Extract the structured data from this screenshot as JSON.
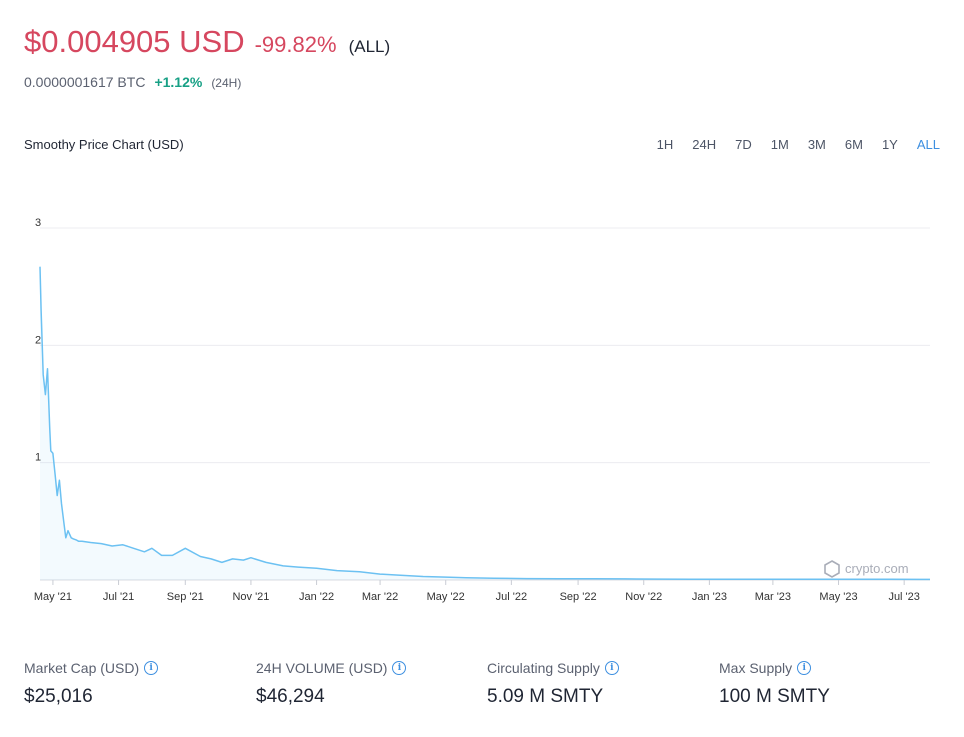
{
  "header": {
    "price": "$0.004905 USD",
    "change": "-99.82%",
    "range": "(ALL)",
    "btc_price": "0.0000001617 BTC",
    "btc_change": "+1.12%",
    "btc_period": "(24H)"
  },
  "chart_section": {
    "title": "Smoothy Price Chart (USD)",
    "tabs": [
      "1H",
      "24H",
      "7D",
      "1M",
      "3M",
      "6M",
      "1Y",
      "ALL"
    ],
    "active_tab": "ALL",
    "watermark": "crypto.com"
  },
  "chart_data": {
    "type": "area",
    "ylim": [
      0,
      3
    ],
    "yticks": [
      "3",
      "2",
      "1"
    ],
    "xticks": [
      "May '21",
      "Jul '21",
      "Sep '21",
      "Nov '21",
      "Jan '22",
      "Mar '22",
      "May '22",
      "Jul '22",
      "Sep '22",
      "Nov '22",
      "Jan '23",
      "Mar '23",
      "May '23",
      "Jul '23"
    ],
    "grid": true,
    "line_color": "#6cc1f2",
    "series": [
      {
        "x": [
          "2021-04-19",
          "2021-04-20",
          "2021-04-22",
          "2021-04-24",
          "2021-04-26",
          "2021-04-28",
          "2021-04-29",
          "2021-05-01",
          "2021-05-03",
          "2021-05-05",
          "2021-05-07",
          "2021-05-09",
          "2021-05-11",
          "2021-05-13",
          "2021-05-15",
          "2021-05-18",
          "2021-05-20",
          "2021-05-23",
          "2021-05-25",
          "2021-05-28",
          "2021-06-05",
          "2021-06-15",
          "2021-06-25",
          "2021-07-05",
          "2021-07-15",
          "2021-07-25",
          "2021-08-01",
          "2021-08-10",
          "2021-08-20",
          "2021-09-01",
          "2021-09-15",
          "2021-09-25",
          "2021-10-05",
          "2021-10-15",
          "2021-10-25",
          "2021-11-01",
          "2021-11-15",
          "2021-12-01",
          "2021-12-15",
          "2022-01-01",
          "2022-01-20",
          "2022-02-10",
          "2022-03-01",
          "2022-03-20",
          "2022-04-10",
          "2022-05-01",
          "2022-05-20",
          "2022-06-15",
          "2022-07-15",
          "2022-08-15",
          "2022-09-15",
          "2022-10-15",
          "2022-11-15",
          "2022-12-15",
          "2023-01-15",
          "2023-02-15",
          "2023-03-15",
          "2023-04-15",
          "2023-05-15",
          "2023-06-15",
          "2023-07-15",
          "2023-07-25"
        ],
        "values": [
          2.67,
          2.3,
          1.75,
          1.58,
          1.8,
          1.3,
          1.1,
          1.08,
          0.9,
          0.72,
          0.85,
          0.65,
          0.5,
          0.36,
          0.42,
          0.36,
          0.35,
          0.34,
          0.33,
          0.33,
          0.32,
          0.31,
          0.29,
          0.3,
          0.27,
          0.24,
          0.27,
          0.21,
          0.21,
          0.27,
          0.2,
          0.18,
          0.15,
          0.18,
          0.17,
          0.19,
          0.15,
          0.12,
          0.11,
          0.1,
          0.08,
          0.07,
          0.05,
          0.04,
          0.03,
          0.025,
          0.02,
          0.015,
          0.012,
          0.011,
          0.01,
          0.009,
          0.008,
          0.007,
          0.007,
          0.007,
          0.007,
          0.007,
          0.006,
          0.006,
          0.005,
          0.0049
        ]
      }
    ]
  },
  "stats": [
    {
      "label": "Market Cap (USD)",
      "value": "$25,016"
    },
    {
      "label": "24H VOLUME (USD)",
      "value": "$46,294"
    },
    {
      "label": "Circulating Supply",
      "value": "5.09 M SMTY"
    },
    {
      "label": "Max Supply",
      "value": "100 M SMTY"
    }
  ]
}
